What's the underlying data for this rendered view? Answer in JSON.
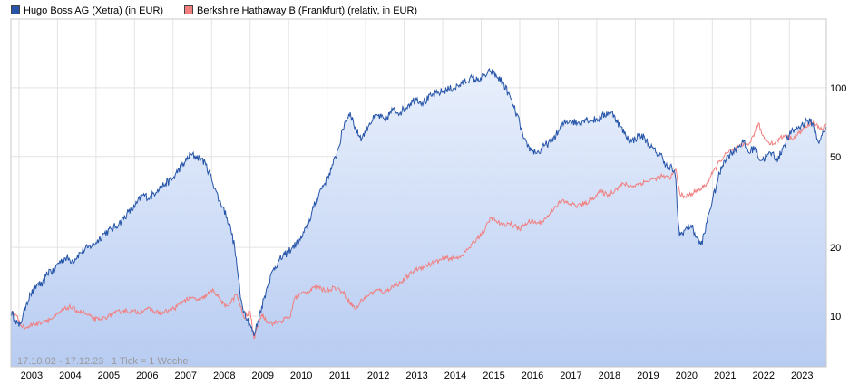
{
  "chart_data": {
    "type": "line",
    "y_scale": "log",
    "ylim": [
      6.0,
      200.0
    ],
    "xlim": [
      2002.79,
      2023.96
    ],
    "grid": true,
    "legend_position": "top-left",
    "range_label": "17.10.02 - 17.12.23",
    "tick_label": "1 Tick = 1 Woche",
    "y_ticks": [
      {
        "value": 10,
        "label": "10"
      },
      {
        "value": 20,
        "label": "20"
      },
      {
        "value": 50,
        "label": "50"
      },
      {
        "value": 100,
        "label": "100"
      }
    ],
    "x_ticks": [
      {
        "value": 2003,
        "label": "2003"
      },
      {
        "value": 2004,
        "label": "2004"
      },
      {
        "value": 2005,
        "label": "2005"
      },
      {
        "value": 2006,
        "label": "2006"
      },
      {
        "value": 2007,
        "label": "2007"
      },
      {
        "value": 2008,
        "label": "2008"
      },
      {
        "value": 2009,
        "label": "2009"
      },
      {
        "value": 2010,
        "label": "2010"
      },
      {
        "value": 2011,
        "label": "2011"
      },
      {
        "value": 2012,
        "label": "2012"
      },
      {
        "value": 2013,
        "label": "2013"
      },
      {
        "value": 2014,
        "label": "2014"
      },
      {
        "value": 2015,
        "label": "2015"
      },
      {
        "value": 2016,
        "label": "2016"
      },
      {
        "value": 2017,
        "label": "2017"
      },
      {
        "value": 2018,
        "label": "2018"
      },
      {
        "value": 2019,
        "label": "2019"
      },
      {
        "value": 2020,
        "label": "2020"
      },
      {
        "value": 2021,
        "label": "2021"
      },
      {
        "value": 2022,
        "label": "2022"
      },
      {
        "value": 2023,
        "label": "2023"
      }
    ],
    "series": [
      {
        "name": "Hugo Boss AG (Xetra) (in EUR)",
        "color": "#2554a8",
        "fill_top": "#e9f0fc",
        "fill_bottom": "#b8ccf2",
        "points": [
          [
            2002.79,
            10.5
          ],
          [
            2002.9,
            9.7
          ],
          [
            2003.0,
            9.0
          ],
          [
            2003.1,
            10.0
          ],
          [
            2003.2,
            11.5
          ],
          [
            2003.3,
            12.5
          ],
          [
            2003.4,
            13.0
          ],
          [
            2003.5,
            14.0
          ],
          [
            2003.6,
            13.5
          ],
          [
            2003.7,
            15.0
          ],
          [
            2003.8,
            16.0
          ],
          [
            2003.9,
            15.5
          ],
          [
            2004.0,
            17.0
          ],
          [
            2004.2,
            18.0
          ],
          [
            2004.4,
            17.5
          ],
          [
            2004.6,
            19.0
          ],
          [
            2004.8,
            20.0
          ],
          [
            2005.0,
            21.0
          ],
          [
            2005.2,
            23.0
          ],
          [
            2005.4,
            24.0
          ],
          [
            2005.6,
            25.5
          ],
          [
            2005.8,
            28.0
          ],
          [
            2006.0,
            30.0
          ],
          [
            2006.2,
            34.0
          ],
          [
            2006.4,
            33.0
          ],
          [
            2006.6,
            36.0
          ],
          [
            2006.8,
            38.0
          ],
          [
            2007.0,
            40.0
          ],
          [
            2007.15,
            44.0
          ],
          [
            2007.3,
            47.0
          ],
          [
            2007.45,
            51.0
          ],
          [
            2007.6,
            50.0
          ],
          [
            2007.75,
            49.0
          ],
          [
            2007.85,
            46.0
          ],
          [
            2008.0,
            40.0
          ],
          [
            2008.1,
            36.0
          ],
          [
            2008.2,
            32.0
          ],
          [
            2008.3,
            30.0
          ],
          [
            2008.4,
            27.0
          ],
          [
            2008.5,
            24.0
          ],
          [
            2008.6,
            20.0
          ],
          [
            2008.7,
            14.5
          ],
          [
            2008.75,
            12.0
          ],
          [
            2008.85,
            10.5
          ],
          [
            2009.0,
            9.2
          ],
          [
            2009.1,
            8.2
          ],
          [
            2009.2,
            9.5
          ],
          [
            2009.3,
            11.0
          ],
          [
            2009.45,
            13.5
          ],
          [
            2009.6,
            16.0
          ],
          [
            2009.75,
            17.5
          ],
          [
            2009.9,
            18.5
          ],
          [
            2010.1,
            20.0
          ],
          [
            2010.3,
            21.5
          ],
          [
            2010.5,
            25.0
          ],
          [
            2010.65,
            30.0
          ],
          [
            2010.8,
            35.0
          ],
          [
            2011.0,
            40.0
          ],
          [
            2011.15,
            46.0
          ],
          [
            2011.3,
            55.0
          ],
          [
            2011.45,
            70.0
          ],
          [
            2011.6,
            78.0
          ],
          [
            2011.75,
            65.0
          ],
          [
            2011.9,
            60.0
          ],
          [
            2012.1,
            70.0
          ],
          [
            2012.3,
            76.0
          ],
          [
            2012.5,
            72.0
          ],
          [
            2012.7,
            80.0
          ],
          [
            2012.9,
            78.0
          ],
          [
            2013.1,
            84.0
          ],
          [
            2013.3,
            90.0
          ],
          [
            2013.5,
            86.0
          ],
          [
            2013.7,
            92.0
          ],
          [
            2013.9,
            95.0
          ],
          [
            2014.1,
            98.0
          ],
          [
            2014.3,
            100.0
          ],
          [
            2014.5,
            104.0
          ],
          [
            2014.7,
            110.0
          ],
          [
            2014.9,
            108.0
          ],
          [
            2015.1,
            113.0
          ],
          [
            2015.25,
            118.0
          ],
          [
            2015.4,
            112.0
          ],
          [
            2015.55,
            106.0
          ],
          [
            2015.7,
            95.0
          ],
          [
            2015.85,
            82.0
          ],
          [
            2016.0,
            70.0
          ],
          [
            2016.1,
            60.0
          ],
          [
            2016.2,
            55.0
          ],
          [
            2016.35,
            53.0
          ],
          [
            2016.5,
            52.0
          ],
          [
            2016.65,
            56.0
          ],
          [
            2016.8,
            58.0
          ],
          [
            2017.0,
            64.0
          ],
          [
            2017.15,
            70.0
          ],
          [
            2017.3,
            72.0
          ],
          [
            2017.5,
            70.0
          ],
          [
            2017.7,
            73.0
          ],
          [
            2017.9,
            72.0
          ],
          [
            2018.1,
            74.0
          ],
          [
            2018.3,
            78.0
          ],
          [
            2018.45,
            76.0
          ],
          [
            2018.6,
            68.0
          ],
          [
            2018.75,
            62.0
          ],
          [
            2018.9,
            58.0
          ],
          [
            2019.1,
            62.0
          ],
          [
            2019.25,
            60.0
          ],
          [
            2019.4,
            55.0
          ],
          [
            2019.55,
            52.0
          ],
          [
            2019.7,
            50.0
          ],
          [
            2019.85,
            44.0
          ],
          [
            2019.95,
            45.0
          ],
          [
            2020.05,
            40.0
          ],
          [
            2020.1,
            28.0
          ],
          [
            2020.15,
            22.5
          ],
          [
            2020.3,
            24.0
          ],
          [
            2020.45,
            25.0
          ],
          [
            2020.6,
            22.0
          ],
          [
            2020.7,
            20.5
          ],
          [
            2020.8,
            23.0
          ],
          [
            2020.9,
            28.0
          ],
          [
            2021.0,
            32.0
          ],
          [
            2021.15,
            40.0
          ],
          [
            2021.3,
            48.0
          ],
          [
            2021.5,
            52.0
          ],
          [
            2021.65,
            55.0
          ],
          [
            2021.8,
            58.0
          ],
          [
            2021.95,
            52.0
          ],
          [
            2022.1,
            55.0
          ],
          [
            2022.25,
            48.0
          ],
          [
            2022.4,
            50.0
          ],
          [
            2022.55,
            52.0
          ],
          [
            2022.7,
            48.0
          ],
          [
            2022.85,
            56.0
          ],
          [
            2023.0,
            62.0
          ],
          [
            2023.15,
            66.0
          ],
          [
            2023.3,
            68.0
          ],
          [
            2023.45,
            72.0
          ],
          [
            2023.6,
            70.0
          ],
          [
            2023.75,
            58.0
          ],
          [
            2023.85,
            62.0
          ],
          [
            2023.96,
            66.0
          ]
        ]
      },
      {
        "name": "Berkshire Hathaway B (Frankfurt) (relativ, in EUR)",
        "color": "#f08080",
        "points": [
          [
            2002.79,
            10.5
          ],
          [
            2002.9,
            10.2
          ],
          [
            2003.0,
            9.6
          ],
          [
            2003.1,
            9.0
          ],
          [
            2003.2,
            8.9
          ],
          [
            2003.35,
            9.2
          ],
          [
            2003.5,
            9.3
          ],
          [
            2003.7,
            9.6
          ],
          [
            2003.9,
            9.8
          ],
          [
            2004.1,
            10.5
          ],
          [
            2004.3,
            11.0
          ],
          [
            2004.5,
            10.6
          ],
          [
            2004.7,
            10.3
          ],
          [
            2004.9,
            9.8
          ],
          [
            2005.1,
            9.6
          ],
          [
            2005.3,
            10.0
          ],
          [
            2005.5,
            10.3
          ],
          [
            2005.7,
            10.6
          ],
          [
            2005.9,
            10.5
          ],
          [
            2006.1,
            10.4
          ],
          [
            2006.3,
            10.8
          ],
          [
            2006.5,
            10.5
          ],
          [
            2006.7,
            10.3
          ],
          [
            2006.9,
            10.6
          ],
          [
            2007.1,
            11.0
          ],
          [
            2007.3,
            11.8
          ],
          [
            2007.5,
            12.0
          ],
          [
            2007.7,
            11.7
          ],
          [
            2007.9,
            12.5
          ],
          [
            2008.05,
            13.0
          ],
          [
            2008.2,
            12.0
          ],
          [
            2008.35,
            11.0
          ],
          [
            2008.5,
            11.5
          ],
          [
            2008.65,
            12.5
          ],
          [
            2008.75,
            11.0
          ],
          [
            2008.85,
            9.8
          ],
          [
            2009.0,
            10.5
          ],
          [
            2009.1,
            8.0
          ],
          [
            2009.2,
            9.0
          ],
          [
            2009.3,
            10.2
          ],
          [
            2009.45,
            9.5
          ],
          [
            2009.6,
            9.3
          ],
          [
            2009.8,
            9.5
          ],
          [
            2009.95,
            9.8
          ],
          [
            2010.05,
            10.0
          ],
          [
            2010.15,
            12.0
          ],
          [
            2010.3,
            12.5
          ],
          [
            2010.5,
            12.8
          ],
          [
            2010.65,
            13.5
          ],
          [
            2010.8,
            13.2
          ],
          [
            2011.0,
            13.0
          ],
          [
            2011.2,
            13.4
          ],
          [
            2011.4,
            12.8
          ],
          [
            2011.6,
            11.5
          ],
          [
            2011.75,
            10.7
          ],
          [
            2011.9,
            11.8
          ],
          [
            2012.1,
            12.5
          ],
          [
            2012.3,
            13.0
          ],
          [
            2012.5,
            12.8
          ],
          [
            2012.7,
            13.5
          ],
          [
            2012.9,
            14.0
          ],
          [
            2013.1,
            15.0
          ],
          [
            2013.3,
            16.0
          ],
          [
            2013.5,
            16.5
          ],
          [
            2013.7,
            17.0
          ],
          [
            2013.9,
            17.5
          ],
          [
            2014.1,
            18.0
          ],
          [
            2014.3,
            17.8
          ],
          [
            2014.5,
            18.5
          ],
          [
            2014.7,
            20.0
          ],
          [
            2014.9,
            22.0
          ],
          [
            2015.1,
            24.0
          ],
          [
            2015.25,
            27.0
          ],
          [
            2015.4,
            26.0
          ],
          [
            2015.55,
            25.0
          ],
          [
            2015.7,
            25.5
          ],
          [
            2015.85,
            25.0
          ],
          [
            2016.0,
            24.0
          ],
          [
            2016.15,
            25.5
          ],
          [
            2016.3,
            26.0
          ],
          [
            2016.5,
            25.5
          ],
          [
            2016.7,
            27.0
          ],
          [
            2016.9,
            30.0
          ],
          [
            2017.1,
            32.0
          ],
          [
            2017.3,
            31.0
          ],
          [
            2017.5,
            30.5
          ],
          [
            2017.7,
            31.0
          ],
          [
            2017.9,
            33.0
          ],
          [
            2018.1,
            35.0
          ],
          [
            2018.3,
            34.0
          ],
          [
            2018.5,
            36.0
          ],
          [
            2018.7,
            38.0
          ],
          [
            2018.9,
            37.0
          ],
          [
            2019.1,
            38.0
          ],
          [
            2019.3,
            39.0
          ],
          [
            2019.5,
            40.0
          ],
          [
            2019.7,
            41.0
          ],
          [
            2019.9,
            40.0
          ],
          [
            2020.05,
            44.0
          ],
          [
            2020.15,
            35.0
          ],
          [
            2020.25,
            33.0
          ],
          [
            2020.4,
            34.0
          ],
          [
            2020.55,
            35.0
          ],
          [
            2020.7,
            36.0
          ],
          [
            2020.85,
            38.0
          ],
          [
            2021.0,
            42.0
          ],
          [
            2021.2,
            48.0
          ],
          [
            2021.4,
            52.0
          ],
          [
            2021.6,
            54.0
          ],
          [
            2021.8,
            56.0
          ],
          [
            2022.0,
            58.0
          ],
          [
            2022.1,
            64.0
          ],
          [
            2022.2,
            70.0
          ],
          [
            2022.3,
            62.0
          ],
          [
            2022.45,
            58.0
          ],
          [
            2022.6,
            57.0
          ],
          [
            2022.75,
            60.0
          ],
          [
            2022.9,
            62.0
          ],
          [
            2023.05,
            60.0
          ],
          [
            2023.2,
            62.0
          ],
          [
            2023.35,
            66.0
          ],
          [
            2023.5,
            68.0
          ],
          [
            2023.6,
            70.0
          ],
          [
            2023.7,
            69.0
          ],
          [
            2023.8,
            66.0
          ],
          [
            2023.96,
            68.0
          ]
        ]
      }
    ]
  }
}
